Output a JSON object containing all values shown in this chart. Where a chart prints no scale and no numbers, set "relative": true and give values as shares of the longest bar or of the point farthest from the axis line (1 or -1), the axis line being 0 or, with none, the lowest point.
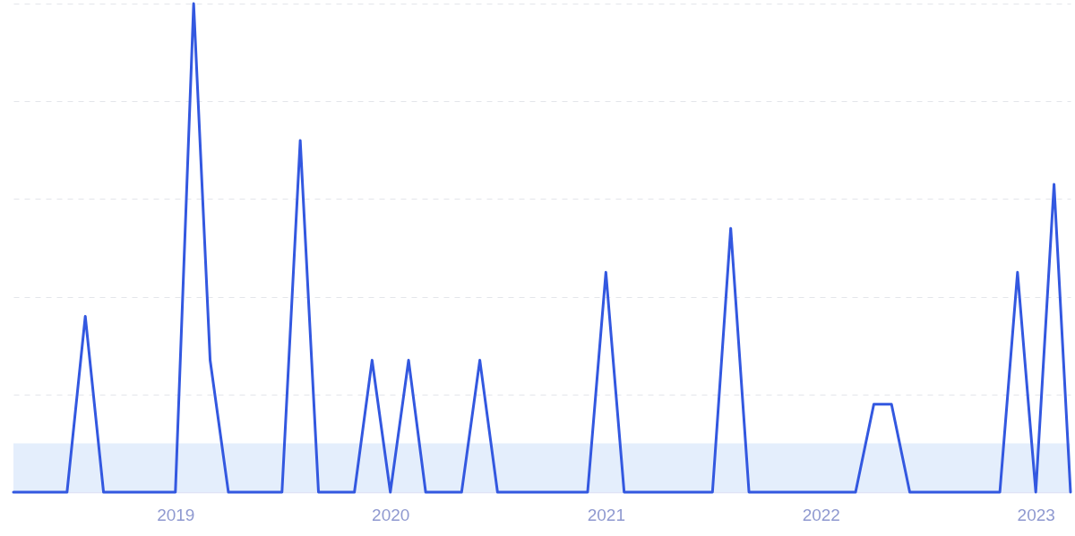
{
  "chart_data": {
    "type": "line",
    "relative": true,
    "grid": "y",
    "line_style": "solid",
    "marker": "none",
    "bands": [
      {
        "axis": "y",
        "from": 0,
        "to": 0.1,
        "color": "#e4eefc"
      }
    ],
    "xlim": [
      "2018-04",
      "2023-03"
    ],
    "xticks": [
      "2019",
      "2020",
      "2021",
      "2022",
      "2023"
    ],
    "x": [
      "2018-04",
      "2018-05",
      "2018-06",
      "2018-07",
      "2018-08",
      "2018-09",
      "2018-10",
      "2018-11",
      "2018-12",
      "2019-01",
      "2019-02",
      "2019-03",
      "2019-04",
      "2019-05",
      "2019-06",
      "2019-07",
      "2019-08",
      "2019-09",
      "2019-10",
      "2019-11",
      "2019-12",
      "2020-01",
      "2020-02",
      "2020-03",
      "2020-04",
      "2020-05",
      "2020-06",
      "2020-07",
      "2020-08",
      "2020-09",
      "2020-10",
      "2020-11",
      "2020-12",
      "2021-01",
      "2021-02",
      "2021-03",
      "2021-04",
      "2021-05",
      "2021-06",
      "2021-07",
      "2021-08",
      "2021-09",
      "2021-10",
      "2021-11",
      "2021-12",
      "2022-01",
      "2022-02",
      "2022-03",
      "2022-04",
      "2022-05",
      "2022-06",
      "2022-07",
      "2022-08",
      "2022-09",
      "2022-10",
      "2022-11",
      "2022-12",
      "2023-01",
      "2023-02",
      "2023-03"
    ],
    "series": [
      {
        "color": "#3358e0",
        "values": [
          0,
          0,
          0,
          0,
          0.36,
          0,
          0,
          0,
          0,
          0,
          1,
          0.27,
          0,
          0,
          0,
          0,
          0.72,
          0,
          0,
          0,
          0.27,
          0,
          0.27,
          0,
          0,
          0,
          0.27,
          0,
          0,
          0,
          0,
          0,
          0,
          0.45,
          0,
          0,
          0,
          0,
          0,
          0,
          0.54,
          0,
          0,
          0,
          0,
          0,
          0,
          0,
          0.18,
          0.18,
          0,
          0,
          0,
          0,
          0,
          0,
          0.45,
          0,
          0.63,
          0
        ]
      }
    ]
  }
}
